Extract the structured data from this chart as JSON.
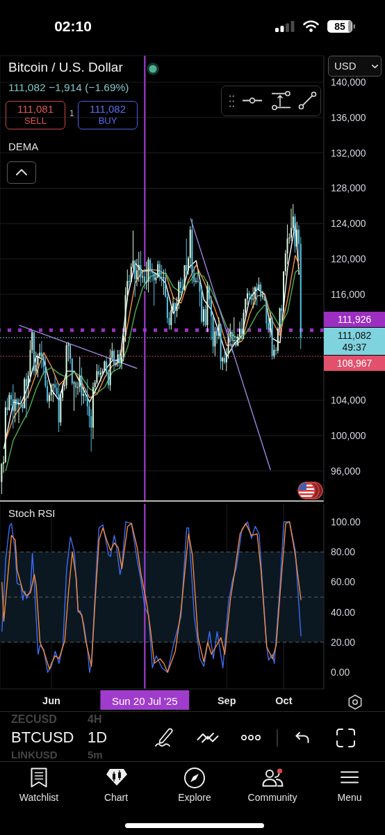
{
  "chart_data": [
    {
      "type": "candlestick",
      "title": "Bitcoin / U.S. Dollar",
      "subtitle": "111,082 −1,914 (−1.69%)",
      "x": [
        "2025-05-06",
        "2025-05-07",
        "2025-05-08",
        "2025-05-09",
        "2025-05-10",
        "2025-05-11",
        "2025-05-12",
        "2025-05-13",
        "2025-05-14",
        "2025-05-15",
        "2025-05-16",
        "2025-05-17",
        "2025-05-18",
        "2025-05-19",
        "2025-05-20",
        "2025-05-21",
        "2025-05-22",
        "2025-05-23",
        "2025-05-24",
        "2025-05-25",
        "2025-05-26",
        "2025-05-27",
        "2025-05-28",
        "2025-05-29",
        "2025-05-30",
        "2025-05-31",
        "2025-06-01",
        "2025-06-02",
        "2025-06-03",
        "2025-06-04",
        "2025-06-05",
        "2025-06-06",
        "2025-06-07",
        "2025-06-08",
        "2025-06-09",
        "2025-06-10",
        "2025-06-11",
        "2025-06-12",
        "2025-06-13",
        "2025-06-14",
        "2025-06-15",
        "2025-06-16",
        "2025-06-17",
        "2025-06-18",
        "2025-06-19",
        "2025-06-20",
        "2025-06-21",
        "2025-06-22",
        "2025-06-23",
        "2025-06-24",
        "2025-06-25",
        "2025-06-26",
        "2025-06-27",
        "2025-06-28",
        "2025-06-29",
        "2025-06-30",
        "2025-07-01",
        "2025-07-02",
        "2025-07-03",
        "2025-07-04",
        "2025-07-05",
        "2025-07-06",
        "2025-07-07",
        "2025-07-08",
        "2025-07-09",
        "2025-07-10",
        "2025-07-11",
        "2025-07-12",
        "2025-07-13",
        "2025-07-14",
        "2025-07-15",
        "2025-07-16",
        "2025-07-17",
        "2025-07-18",
        "2025-07-19",
        "2025-07-20",
        "2025-07-21",
        "2025-07-22",
        "2025-07-23",
        "2025-07-24",
        "2025-07-25",
        "2025-07-26",
        "2025-07-27",
        "2025-07-28",
        "2025-07-29",
        "2025-07-30",
        "2025-07-31",
        "2025-08-01",
        "2025-08-02",
        "2025-08-03",
        "2025-08-04",
        "2025-08-05",
        "2025-08-06",
        "2025-08-07",
        "2025-08-08",
        "2025-08-09",
        "2025-08-10",
        "2025-08-11",
        "2025-08-12",
        "2025-08-13",
        "2025-08-14",
        "2025-08-15",
        "2025-08-16",
        "2025-08-17",
        "2025-08-18",
        "2025-08-19",
        "2025-08-20",
        "2025-08-21",
        "2025-08-22",
        "2025-08-23",
        "2025-08-24",
        "2025-08-25",
        "2025-08-26",
        "2025-08-27",
        "2025-08-28",
        "2025-08-29",
        "2025-08-30",
        "2025-08-31",
        "2025-09-01",
        "2025-09-02",
        "2025-09-03",
        "2025-09-04",
        "2025-09-05",
        "2025-09-06",
        "2025-09-07",
        "2025-09-08",
        "2025-09-09",
        "2025-09-10",
        "2025-09-11",
        "2025-09-12",
        "2025-09-13",
        "2025-09-14",
        "2025-09-15",
        "2025-09-16",
        "2025-09-17",
        "2025-09-18",
        "2025-09-19",
        "2025-09-20",
        "2025-09-21",
        "2025-09-22",
        "2025-09-23",
        "2025-09-24",
        "2025-09-25",
        "2025-09-26",
        "2025-09-27",
        "2025-09-28",
        "2025-09-29",
        "2025-09-30",
        "2025-10-01",
        "2025-10-02",
        "2025-10-03",
        "2025-10-04",
        "2025-10-05",
        "2025-10-06",
        "2025-10-07",
        "2025-10-08",
        "2025-10-09",
        "2025-10-10"
      ],
      "ohlc": [
        [
          94750,
          96900,
          93400,
          96800
        ],
        [
          96800,
          97700,
          95800,
          97000
        ],
        [
          97000,
          103900,
          96900,
          103200
        ],
        [
          103200,
          104300,
          102300,
          102900
        ],
        [
          102900,
          104900,
          102800,
          104600
        ],
        [
          104600,
          104900,
          103400,
          104100
        ],
        [
          104100,
          105800,
          100800,
          102800
        ],
        [
          102800,
          104900,
          101500,
          104100
        ],
        [
          104100,
          104300,
          102600,
          103500
        ],
        [
          103500,
          104200,
          101400,
          103700
        ],
        [
          103700,
          104500,
          103100,
          103500
        ],
        [
          103500,
          103700,
          102600,
          103100
        ],
        [
          103100,
          106600,
          103100,
          106400
        ],
        [
          106400,
          107100,
          102000,
          105600
        ],
        [
          105600,
          107300,
          104200,
          106800
        ],
        [
          106800,
          110800,
          106100,
          109700
        ],
        [
          109700,
          111900,
          109300,
          111700
        ],
        [
          111700,
          111800,
          106800,
          107300
        ],
        [
          107300,
          109500,
          106900,
          108000
        ],
        [
          108000,
          109300,
          106600,
          109000
        ],
        [
          109000,
          110400,
          108700,
          109400
        ],
        [
          109400,
          110700,
          107600,
          108900
        ],
        [
          108900,
          109300,
          106900,
          107800
        ],
        [
          107800,
          108900,
          105400,
          105600
        ],
        [
          105600,
          106300,
          103700,
          103900
        ],
        [
          103900,
          104900,
          103100,
          104600
        ],
        [
          104600,
          105900,
          103900,
          105700
        ],
        [
          105700,
          105900,
          103800,
          105800
        ],
        [
          105800,
          106800,
          104900,
          105400
        ],
        [
          105400,
          106000,
          104200,
          104700
        ],
        [
          104700,
          105900,
          100400,
          101500
        ],
        [
          101500,
          105000,
          101100,
          104300
        ],
        [
          104300,
          105900,
          103900,
          105600
        ],
        [
          105600,
          106400,
          105100,
          105700
        ],
        [
          105700,
          110500,
          105300,
          110200
        ],
        [
          110200,
          110600,
          108400,
          110300
        ],
        [
          110300,
          110400,
          108100,
          108700
        ],
        [
          108700,
          108800,
          105700,
          105900
        ],
        [
          105900,
          106200,
          102800,
          106000
        ],
        [
          106000,
          106200,
          104300,
          105400
        ],
        [
          105400,
          106100,
          104600,
          105500
        ],
        [
          105500,
          108900,
          104900,
          106800
        ],
        [
          106800,
          107700,
          103400,
          104500
        ],
        [
          104500,
          105500,
          103600,
          104700
        ],
        [
          104700,
          105300,
          103900,
          104600
        ],
        [
          104600,
          106400,
          102300,
          103300
        ],
        [
          103300,
          104000,
          100900,
          102200
        ],
        [
          102200,
          103000,
          98200,
          100900
        ],
        [
          100900,
          106000,
          99600,
          105500
        ],
        [
          105500,
          106300,
          104700,
          106000
        ],
        [
          106000,
          108100,
          105800,
          107300
        ],
        [
          107300,
          108000,
          106600,
          106900
        ],
        [
          106900,
          107700,
          106100,
          107100
        ],
        [
          107100,
          107600,
          106800,
          107300
        ],
        [
          107300,
          108500,
          107200,
          108400
        ],
        [
          108400,
          108800,
          106700,
          107100
        ],
        [
          107100,
          107500,
          105300,
          105700
        ],
        [
          105700,
          109800,
          105100,
          108800
        ],
        [
          108800,
          110500,
          108600,
          109600
        ],
        [
          109600,
          109800,
          107300,
          108000
        ],
        [
          108000,
          108400,
          107800,
          108200
        ],
        [
          108200,
          109700,
          107800,
          109200
        ],
        [
          109200,
          109700,
          107500,
          108200
        ],
        [
          108200,
          109200,
          107500,
          108900
        ],
        [
          108900,
          111900,
          108400,
          111300
        ],
        [
          111300,
          116800,
          110600,
          115900
        ],
        [
          115900,
          118800,
          115300,
          117500
        ],
        [
          117500,
          118200,
          116900,
          117400
        ],
        [
          117400,
          119500,
          117300,
          119100
        ],
        [
          119100,
          123200,
          118900,
          119800
        ],
        [
          119800,
          119900,
          115700,
          117700
        ],
        [
          117700,
          120000,
          116900,
          118700
        ],
        [
          118700,
          120800,
          117400,
          119300
        ],
        [
          119300,
          120900,
          116900,
          117900
        ],
        [
          117900,
          118600,
          117300,
          118000
        ],
        [
          118000,
          118900,
          116600,
          117300
        ],
        [
          117300,
          119700,
          116500,
          117400
        ],
        [
          117400,
          120200,
          116200,
          119900
        ],
        [
          119900,
          120100,
          117300,
          118700
        ],
        [
          118700,
          119500,
          117400,
          118400
        ],
        [
          118400,
          118500,
          114700,
          117600
        ],
        [
          117600,
          118300,
          117200,
          117900
        ],
        [
          117900,
          119800,
          117800,
          119400
        ],
        [
          119400,
          119800,
          117500,
          118000
        ],
        [
          118000,
          119300,
          116900,
          117800
        ],
        [
          117800,
          118800,
          115900,
          117900
        ],
        [
          117900,
          118900,
          115600,
          115700
        ],
        [
          115700,
          116100,
          112700,
          113300
        ],
        [
          113300,
          114000,
          112000,
          112500
        ],
        [
          112500,
          114700,
          112000,
          114200
        ],
        [
          114200,
          115700,
          114100,
          115000
        ],
        [
          115000,
          115100,
          112700,
          114100
        ],
        [
          114100,
          115700,
          113400,
          115000
        ],
        [
          115000,
          117600,
          114300,
          117400
        ],
        [
          117400,
          117900,
          115900,
          116700
        ],
        [
          116700,
          117700,
          116300,
          116500
        ],
        [
          116500,
          119300,
          116400,
          119300
        ],
        [
          119300,
          122300,
          118100,
          118700
        ],
        [
          118700,
          120300,
          118200,
          120100
        ],
        [
          120100,
          123700,
          118900,
          123300
        ],
        [
          123300,
          124500,
          117200,
          118400
        ],
        [
          118400,
          119200,
          116900,
          117400
        ],
        [
          117400,
          117900,
          117200,
          117500
        ],
        [
          117500,
          118600,
          117300,
          117400
        ],
        [
          117400,
          117600,
          114600,
          116300
        ],
        [
          116300,
          117000,
          112700,
          112900
        ],
        [
          112900,
          114600,
          112400,
          114300
        ],
        [
          114300,
          114800,
          112300,
          112500
        ],
        [
          112500,
          117400,
          111700,
          116900
        ],
        [
          116900,
          117000,
          114700,
          115400
        ],
        [
          115400,
          115800,
          110800,
          113500
        ],
        [
          113500,
          113600,
          109300,
          110100
        ],
        [
          110100,
          112300,
          109000,
          111800
        ],
        [
          111800,
          112400,
          110400,
          111300
        ],
        [
          111300,
          113400,
          110900,
          112600
        ],
        [
          112600,
          112700,
          107500,
          108400
        ],
        [
          108400,
          108900,
          107400,
          108800
        ],
        [
          108800,
          109500,
          108100,
          108300
        ],
        [
          108300,
          109900,
          107300,
          109300
        ],
        [
          109300,
          111800,
          108700,
          111200
        ],
        [
          111200,
          112700,
          110600,
          111700
        ],
        [
          111700,
          112000,
          109400,
          110700
        ],
        [
          110700,
          113400,
          110200,
          110800
        ],
        [
          110800,
          111300,
          110000,
          110200
        ],
        [
          110200,
          111500,
          110100,
          111200
        ],
        [
          111200,
          112900,
          110600,
          112100
        ],
        [
          112100,
          113300,
          110900,
          111500
        ],
        [
          111500,
          114300,
          110900,
          113900
        ],
        [
          113900,
          115500,
          113400,
          115500
        ],
        [
          115500,
          116700,
          114800,
          116100
        ],
        [
          116100,
          116400,
          115300,
          115900
        ],
        [
          115900,
          116100,
          114800,
          115400
        ],
        [
          115400,
          116800,
          114400,
          115500
        ],
        [
          115500,
          116900,
          114800,
          116800
        ],
        [
          116800,
          117300,
          114700,
          116500
        ],
        [
          116500,
          117900,
          116400,
          117100
        ],
        [
          117100,
          117400,
          115200,
          115700
        ],
        [
          115700,
          116400,
          115400,
          115800
        ],
        [
          115800,
          115900,
          115200,
          115300
        ],
        [
          115300,
          115400,
          112000,
          112700
        ],
        [
          112700,
          113300,
          111600,
          112000
        ],
        [
          112000,
          113900,
          111100,
          113300
        ],
        [
          113300,
          113500,
          108600,
          109000
        ],
        [
          109000,
          110300,
          108700,
          109700
        ],
        [
          109700,
          110000,
          109100,
          109600
        ],
        [
          109600,
          112300,
          109300,
          112100
        ],
        [
          112100,
          114500,
          111600,
          114400
        ],
        [
          114400,
          114800,
          112700,
          114100
        ],
        [
          114100,
          118600,
          113900,
          118600
        ],
        [
          118600,
          121000,
          118100,
          120600
        ],
        [
          120600,
          123900,
          119400,
          122300
        ],
        [
          122300,
          122900,
          121700,
          122400
        ],
        [
          122400,
          125700,
          122000,
          123500
        ],
        [
          123500,
          126200,
          123200,
          124800
        ],
        [
          124800,
          125100,
          120700,
          121400
        ],
        [
          121400,
          124200,
          121100,
          123300
        ],
        [
          123300,
          123800,
          119700,
          121700
        ],
        [
          121700,
          122500,
          109800,
          111082
        ]
      ],
      "colors": [
        "#d9f7e1",
        "#d9f7e1",
        "#d9f7e1",
        "#56c3e3",
        "#d9f7e1",
        "#56c3e3",
        "#56c3e3",
        "#d9f7e1",
        "#56c3e3",
        "#d9f7e1",
        "#56c3e3",
        "#56c3e3",
        "#d9f7e1",
        "#56c3e3",
        "#d9f7e1",
        "#d9f7e1",
        "#d9f7e1",
        "#56c3e3",
        "#d9f7e1",
        "#d9f7e1",
        "#d9f7e1",
        "#56c3e3",
        "#56c3e3",
        "#56c3e3",
        "#56c3e3",
        "#d9f7e1",
        "#d9f7e1",
        "#d9f7e1",
        "#56c3e3",
        "#56c3e3",
        "#56c3e3",
        "#d9f7e1",
        "#d9f7e1",
        "#d9f7e1",
        "#d9f7e1",
        "#d9f7e1",
        "#56c3e3",
        "#56c3e3",
        "#d9f7e1",
        "#56c3e3",
        "#d9f7e1",
        "#d9f7e1",
        "#56c3e3",
        "#d9f7e1",
        "#56c3e3",
        "#56c3e3",
        "#56c3e3",
        "#56c3e3",
        "#d9f7e1",
        "#d9f7e1",
        "#d9f7e1",
        "#56c3e3",
        "#d9f7e1",
        "#d9f7e1",
        "#d9f7e1",
        "#56c3e3",
        "#56c3e3",
        "#d9f7e1",
        "#d9f7e1",
        "#56c3e3",
        "#d9f7e1",
        "#d9f7e1",
        "#56c3e3",
        "#d9f7e1",
        "#d9f7e1",
        "#d9f7e1",
        "#d9f7e1",
        "#56c3e3",
        "#d9f7e1",
        "#d9f7e1",
        "#56c3e3",
        "#d9f7e1",
        "#d9f7e1",
        "#56c3e3",
        "#d9f7e1",
        "#56c3e3",
        "#d9f7e1",
        "#d9f7e1",
        "#56c3e3",
        "#56c3e3",
        "#56c3e3",
        "#d9f7e1",
        "#d9f7e1",
        "#56c3e3",
        "#56c3e3",
        "#d9f7e1",
        "#56c3e3",
        "#56c3e3",
        "#56c3e3",
        "#d9f7e1",
        "#d9f7e1",
        "#56c3e3",
        "#d9f7e1",
        "#d9f7e1",
        "#56c3e3",
        "#56c3e3",
        "#d9f7e1",
        "#56c3e3",
        "#d9f7e1",
        "#d9f7e1",
        "#56c3e3",
        "#56c3e3",
        "#d9f7e1",
        "#56c3e3",
        "#56c3e3",
        "#56c3e3",
        "#d9f7e1",
        "#56c3e3",
        "#d9f7e1",
        "#56c3e3",
        "#56c3e3",
        "#56c3e3",
        "#d9f7e1",
        "#56c3e3",
        "#d9f7e1",
        "#56c3e3",
        "#d9f7e1",
        "#56c3e3",
        "#d9f7e1",
        "#d9f7e1",
        "#d9f7e1",
        "#56c3e3",
        "#d9f7e1",
        "#56c3e3",
        "#d9f7e1",
        "#d9f7e1",
        "#56c3e3",
        "#d9f7e1",
        "#d9f7e1",
        "#d9f7e1",
        "#56c3e3",
        "#56c3e3",
        "#d9f7e1",
        "#d9f7e1",
        "#56c3e3",
        "#d9f7e1",
        "#56c3e3",
        "#d9f7e1",
        "#56c3e3",
        "#56c3e3",
        "#56c3e3",
        "#d9f7e1",
        "#56c3e3",
        "#d9f7e1",
        "#56c3e3",
        "#d9f7e1",
        "#d9f7e1",
        "#56c3e3",
        "#d9f7e1",
        "#d9f7e1",
        "#d9f7e1",
        "#d9f7e1",
        "#d9f7e1",
        "#d9f7e1",
        "#56c3e3",
        "#d9f7e1",
        "#56c3e3",
        "#56c3e3"
      ],
      "series": [
        {
          "type": "line",
          "color": "#ffffff",
          "x": [
            "2025-05-07",
            "2025-05-12",
            "2025-05-16",
            "2025-05-20",
            "2025-05-24",
            "2025-05-28",
            "2025-06-01",
            "2025-06-05",
            "2025-06-09",
            "2025-06-13",
            "2025-06-17",
            "2025-06-21",
            "2025-06-25",
            "2025-06-29",
            "2025-07-03",
            "2025-07-07",
            "2025-07-11",
            "2025-07-15",
            "2025-07-19",
            "2025-07-23",
            "2025-07-27",
            "2025-07-31",
            "2025-08-04",
            "2025-08-08",
            "2025-08-12",
            "2025-08-16",
            "2025-08-20",
            "2025-08-24",
            "2025-08-28",
            "2025-09-01",
            "2025-09-05",
            "2025-09-09",
            "2025-09-13",
            "2025-09-17",
            "2025-09-21",
            "2025-09-25",
            "2025-09-29",
            "2025-10-03",
            "2025-10-07",
            "2025-10-09"
          ],
          "values": [
            98500,
            103800,
            103600,
            105800,
            109000,
            108600,
            105200,
            104000,
            107300,
            107300,
            105600,
            103800,
            105500,
            107400,
            108500,
            108600,
            115800,
            119500,
            118600,
            118700,
            118200,
            117200,
            113800,
            115600,
            119000,
            119800,
            115400,
            114200,
            111700,
            108900,
            110400,
            111300,
            115500,
            116600,
            116000,
            111000,
            110500,
            119000,
            124000,
            118200
          ]
        },
        {
          "type": "line",
          "color": "#f5923e",
          "x": [
            "2025-05-08",
            "2025-05-12",
            "2025-05-16",
            "2025-05-20",
            "2025-05-24",
            "2025-05-28",
            "2025-06-01",
            "2025-06-05",
            "2025-06-09",
            "2025-06-13",
            "2025-06-17",
            "2025-06-21",
            "2025-06-25",
            "2025-06-29",
            "2025-07-03",
            "2025-07-07",
            "2025-07-11",
            "2025-07-15",
            "2025-07-19",
            "2025-07-23",
            "2025-07-27",
            "2025-07-31",
            "2025-08-04",
            "2025-08-08",
            "2025-08-12",
            "2025-08-16",
            "2025-08-20",
            "2025-08-24",
            "2025-08-28",
            "2025-09-01",
            "2025-09-05",
            "2025-09-09",
            "2025-09-13",
            "2025-09-17",
            "2025-09-21",
            "2025-09-25",
            "2025-09-29",
            "2025-10-03",
            "2025-10-07",
            "2025-10-09"
          ],
          "values": [
            99500,
            102000,
            103300,
            104600,
            107000,
            109400,
            107800,
            105700,
            106600,
            107200,
            106000,
            104300,
            104700,
            106600,
            107900,
            108400,
            112500,
            117300,
            118700,
            118800,
            118700,
            118300,
            115600,
            115000,
            117600,
            119300,
            117500,
            115400,
            113000,
            110200,
            110300,
            110700,
            113700,
            115800,
            116000,
            113000,
            111300,
            115500,
            120400,
            119300
          ]
        },
        {
          "type": "line",
          "color": "#4caf50",
          "x": [
            "2025-05-08",
            "2025-05-12",
            "2025-05-16",
            "2025-05-20",
            "2025-05-24",
            "2025-05-28",
            "2025-06-01",
            "2025-06-05",
            "2025-06-09",
            "2025-06-13",
            "2025-06-17",
            "2025-06-21",
            "2025-06-25",
            "2025-06-29",
            "2025-07-03",
            "2025-07-07",
            "2025-07-11",
            "2025-07-15",
            "2025-07-19",
            "2025-07-23",
            "2025-07-27",
            "2025-07-31",
            "2025-08-04",
            "2025-08-08",
            "2025-08-12",
            "2025-08-16",
            "2025-08-20",
            "2025-08-24",
            "2025-08-28",
            "2025-09-01",
            "2025-09-05",
            "2025-09-09",
            "2025-09-13",
            "2025-09-17",
            "2025-09-21",
            "2025-09-25",
            "2025-09-29",
            "2025-10-03",
            "2025-10-07",
            "2025-10-09"
          ],
          "values": [
            96000,
            99500,
            101200,
            102800,
            105300,
            107200,
            107700,
            107000,
            106600,
            107200,
            106600,
            105300,
            104800,
            105500,
            107200,
            107700,
            110000,
            114000,
            116800,
            118000,
            118300,
            118400,
            116800,
            116200,
            117300,
            118400,
            118000,
            116400,
            114500,
            112300,
            111200,
            111000,
            112200,
            113800,
            114800,
            113800,
            112300,
            114000,
            118500,
            118800
          ]
        },
        {
          "type": "line",
          "color": "#9d86dc",
          "x": [
            "2025-05-15",
            "2025-07-16"
          ],
          "values": [
            112500,
            107600
          ]
        },
        {
          "type": "line",
          "color": "#9d86dc",
          "x": [
            "2025-08-13",
            "2025-09-24"
          ],
          "values": [
            124600,
            96100
          ]
        }
      ],
      "xlim": [
        "2025-05-05",
        "2025-10-22"
      ],
      "xticks": [
        {
          "value": "2025-06-01",
          "label": null
        },
        {
          "value": "2025-09-01",
          "label": null
        },
        {
          "value": "2025-10-01",
          "label": null
        }
      ],
      "ylim": [
        92600,
        143000
      ],
      "yticks": [
        {
          "value": 96000,
          "label": "96,000"
        },
        {
          "value": 100000,
          "label": "100,000"
        },
        {
          "value": 104000,
          "label": "104,000"
        },
        {
          "value": 116000,
          "label": "116,000"
        },
        {
          "value": 120000,
          "label": "120,000"
        },
        {
          "value": 124000,
          "label": "124,000"
        },
        {
          "value": 128000,
          "label": "128,000"
        },
        {
          "value": 132000,
          "label": "132,000"
        },
        {
          "value": 136000,
          "label": "136,000"
        },
        {
          "value": 140000,
          "label": "140,000"
        }
      ],
      "tick_labels": "y",
      "grid": true,
      "ref_lines": [
        {
          "axis": "y",
          "value": 111926,
          "label": "111,926",
          "color": "#9c2fc2",
          "line_style": "dotted"
        },
        {
          "axis": "y",
          "value": 111082,
          "label": "111,082 49:37",
          "color": "#7fd3de",
          "line_style": "dotted"
        },
        {
          "axis": "y",
          "value": 108967,
          "label": "108,967",
          "color": "#e2506c",
          "line_style": "dotted"
        },
        {
          "axis": "x",
          "value": "2025-07-20",
          "color": "#a03ccc"
        }
      ],
      "annotations": [
        "02:10",
        "85",
        "USD",
        "111,081",
        "SELL",
        "1",
        "111,082",
        "BUY",
        "DEMA"
      ]
    },
    {
      "type": "line",
      "title": "Stoch RSI",
      "series": [
        {
          "type": "line",
          "color": "#3d6df2",
          "x": [
            "2025-05-06",
            "2025-05-08",
            "2025-05-10",
            "2025-05-11",
            "2025-05-13",
            "2025-05-14",
            "2025-05-16",
            "2025-05-17",
            "2025-05-18",
            "2025-05-19",
            "2025-05-21",
            "2025-05-22",
            "2025-05-23",
            "2025-05-25",
            "2025-05-26",
            "2025-05-28",
            "2025-05-30",
            "2025-06-01",
            "2025-06-03",
            "2025-06-05",
            "2025-06-07",
            "2025-06-09",
            "2025-06-11",
            "2025-06-13",
            "2025-06-15",
            "2025-06-16",
            "2025-06-18",
            "2025-06-20",
            "2025-06-21",
            "2025-06-22",
            "2025-06-25",
            "2025-06-26",
            "2025-06-28",
            "2025-07-01",
            "2025-07-02",
            "2025-07-04",
            "2025-07-05",
            "2025-07-07",
            "2025-07-08",
            "2025-07-10",
            "2025-07-13",
            "2025-07-16",
            "2025-07-18",
            "2025-07-20",
            "2025-07-22",
            "2025-07-24",
            "2025-07-26",
            "2025-07-29",
            "2025-08-01",
            "2025-08-04",
            "2025-08-08",
            "2025-08-11",
            "2025-08-12",
            "2025-08-15",
            "2025-08-18",
            "2025-08-20",
            "2025-08-23",
            "2025-08-25",
            "2025-08-27",
            "2025-08-30",
            "2025-09-02",
            "2025-09-04",
            "2025-09-06",
            "2025-09-09",
            "2025-09-12",
            "2025-09-14",
            "2025-09-16",
            "2025-09-18",
            "2025-09-22",
            "2025-09-23",
            "2025-09-25",
            "2025-09-26",
            "2025-09-29",
            "2025-10-01",
            "2025-10-04",
            "2025-10-07",
            "2025-10-10"
          ],
          "values": [
            27,
            75,
            97,
            99,
            80,
            59,
            58,
            48,
            54,
            49,
            55,
            79,
            60,
            12,
            18,
            15,
            0,
            4,
            14,
            6,
            18,
            69,
            90,
            80,
            40,
            41,
            32,
            15,
            0,
            6,
            78,
            96,
            98,
            78,
            77,
            91,
            85,
            65,
            71,
            100,
            99,
            75,
            61,
            43,
            38,
            3,
            11,
            3,
            0,
            18,
            37,
            96,
            96,
            37,
            9,
            4,
            27,
            9,
            27,
            3,
            47,
            61,
            69,
            95,
            100,
            89,
            97,
            92,
            17,
            8,
            12,
            6,
            58,
            100,
            100,
            81,
            24
          ]
        },
        {
          "type": "line",
          "color": "#f58a3c",
          "x": [
            "2025-05-06",
            "2025-05-07",
            "2025-05-11",
            "2025-05-13",
            "2025-05-14",
            "2025-05-17",
            "2025-05-19",
            "2025-05-21",
            "2025-05-23",
            "2025-05-24",
            "2025-05-26",
            "2025-05-28",
            "2025-05-31",
            "2025-06-01",
            "2025-06-03",
            "2025-06-05",
            "2025-06-08",
            "2025-06-10",
            "2025-06-12",
            "2025-06-14",
            "2025-06-15",
            "2025-06-17",
            "2025-06-19",
            "2025-06-22",
            "2025-06-24",
            "2025-06-26",
            "2025-06-28",
            "2025-06-30",
            "2025-07-02",
            "2025-07-04",
            "2025-07-06",
            "2025-07-08",
            "2025-07-11",
            "2025-07-13",
            "2025-07-16",
            "2025-07-18",
            "2025-07-21",
            "2025-07-23",
            "2025-07-25",
            "2025-07-28",
            "2025-07-30",
            "2025-08-01",
            "2025-08-05",
            "2025-08-08",
            "2025-08-12",
            "2025-08-14",
            "2025-08-17",
            "2025-08-20",
            "2025-08-22",
            "2025-08-24",
            "2025-08-29",
            "2025-08-31",
            "2025-09-03",
            "2025-09-05",
            "2025-09-08",
            "2025-09-11",
            "2025-09-14",
            "2025-09-17",
            "2025-09-19",
            "2025-09-22",
            "2025-09-25",
            "2025-09-27",
            "2025-09-29",
            "2025-10-02",
            "2025-10-04",
            "2025-10-07",
            "2025-10-10"
          ],
          "values": [
            60,
            34,
            91,
            88,
            68,
            54,
            51,
            53,
            65,
            58,
            20,
            14,
            2,
            6,
            11,
            9,
            21,
            54,
            80,
            63,
            41,
            38,
            21,
            4,
            49,
            88,
            96,
            88,
            81,
            86,
            83,
            69,
            97,
            99,
            83,
            65,
            46,
            28,
            6,
            9,
            6,
            0,
            14,
            41,
            92,
            78,
            23,
            7,
            20,
            12,
            23,
            12,
            49,
            65,
            92,
            99,
            91,
            92,
            68,
            17,
            9,
            18,
            52,
            99,
            100,
            78,
            48
          ]
        }
      ],
      "xlim": [
        "2025-05-05",
        "2025-10-22"
      ],
      "xticks": [
        {
          "value": "2025-06-01",
          "label": "Jun"
        },
        {
          "value": "2025-09-01",
          "label": "Sep"
        },
        {
          "value": "2025-10-01",
          "label": "Oct"
        }
      ],
      "ylim": [
        -11,
        112
      ],
      "yticks": [
        {
          "value": 0,
          "label": "0.00"
        },
        {
          "value": 20,
          "label": "20.00"
        },
        {
          "value": 40,
          "label": "40.00"
        },
        {
          "value": 60,
          "label": "60.00"
        },
        {
          "value": 80,
          "label": "80.00"
        },
        {
          "value": 100,
          "label": "100.00"
        }
      ],
      "grid": "x",
      "bands": [
        {
          "axis": "y",
          "from": 20,
          "to": 80,
          "color": "#0c1821"
        }
      ],
      "ref_lines": [
        {
          "axis": "y",
          "value": 80,
          "color": "#5c6068",
          "line_style": "dashed"
        },
        {
          "axis": "y",
          "value": 50,
          "color": "#5c6068",
          "line_style": "dashed"
        },
        {
          "axis": "y",
          "value": 20,
          "color": "#5c6068",
          "line_style": "dashed"
        },
        {
          "axis": "x",
          "value": "2025-07-20",
          "label": "Sun 20 Jul '25",
          "color": "#a03ccc"
        }
      ],
      "annotations": [
        "ZECUSD",
        "4H",
        "BTCUSD",
        "1D",
        "LINKUSD",
        "5m",
        "Watchlist",
        "Chart",
        "Explore",
        "Community",
        "Menu"
      ]
    }
  ]
}
